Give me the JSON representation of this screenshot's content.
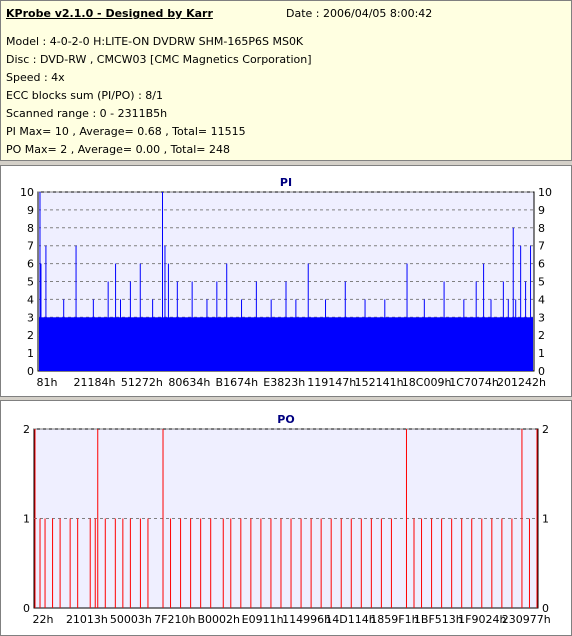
{
  "info": {
    "title": "KProbe v2.1.0 - Designed by Karr",
    "date": "Date : 2006/04/05 8:00:42",
    "lines": [
      "Model : 4-0-2-0 H:LITE-ON DVDRW SHM-165P6S MS0K",
      "Disc : DVD-RW , CMCW03 [CMC Magnetics Corporation]",
      "Speed : 4x",
      "ECC blocks sum (PI/PO) : 8/1",
      "Scanned range : 0 - 2311B5h",
      "PI Max= 10 , Average= 0.68 , Total= 11515",
      "PO Max= 2 , Average= 0.00 , Total= 248"
    ]
  },
  "colors": {
    "pi_bar": "#0000ff",
    "po_bar": "#ff0000",
    "plot_bg": "#efefff",
    "grid": "#808080"
  },
  "chart_data": [
    {
      "type": "bar",
      "title": "PI",
      "ylim": [
        0,
        10
      ],
      "yticks": [
        0,
        1,
        2,
        3,
        4,
        5,
        6,
        7,
        8,
        9,
        10
      ],
      "grid": true,
      "xticks": [
        "81h",
        "21184h",
        "51272h",
        "80634h",
        "B1674h",
        "E3823h",
        "119147h",
        "152141h",
        "18C009h",
        "1C7074h",
        "201242h"
      ],
      "baseline": 3,
      "series": [
        {
          "values": [
            [
              0.002,
              10
            ],
            [
              0.004,
              6
            ],
            [
              0.014,
              7
            ],
            [
              0.05,
              4
            ],
            [
              0.075,
              7
            ],
            [
              0.11,
              4
            ],
            [
              0.14,
              5
            ],
            [
              0.155,
              6
            ],
            [
              0.165,
              4
            ],
            [
              0.185,
              5
            ],
            [
              0.205,
              6
            ],
            [
              0.23,
              4
            ],
            [
              0.25,
              10
            ],
            [
              0.255,
              7
            ],
            [
              0.262,
              6
            ],
            [
              0.28,
              5
            ],
            [
              0.31,
              5
            ],
            [
              0.34,
              4
            ],
            [
              0.36,
              5
            ],
            [
              0.38,
              6
            ],
            [
              0.41,
              4
            ],
            [
              0.44,
              5
            ],
            [
              0.47,
              4
            ],
            [
              0.5,
              5
            ],
            [
              0.52,
              4
            ],
            [
              0.545,
              6
            ],
            [
              0.58,
              4
            ],
            [
              0.62,
              5
            ],
            [
              0.66,
              4
            ],
            [
              0.7,
              4
            ],
            [
              0.745,
              6
            ],
            [
              0.78,
              4
            ],
            [
              0.82,
              5
            ],
            [
              0.86,
              4
            ],
            [
              0.885,
              5
            ],
            [
              0.9,
              6
            ],
            [
              0.915,
              4
            ],
            [
              0.94,
              5
            ],
            [
              0.95,
              4
            ],
            [
              0.96,
              8
            ],
            [
              0.965,
              4
            ],
            [
              0.975,
              7
            ],
            [
              0.985,
              5
            ],
            [
              0.995,
              7
            ]
          ]
        }
      ]
    },
    {
      "type": "bar",
      "title": "PO",
      "ylim": [
        0,
        2
      ],
      "yticks": [
        0,
        1,
        2
      ],
      "grid": true,
      "xticks": [
        "22h",
        "21013h",
        "50003h",
        "7F210h",
        "B0002h",
        "E0911h",
        "114996h",
        "14D114h",
        "1859F1h",
        "1BF513h",
        "1F9024h",
        "230977h"
      ],
      "series": [
        {
          "values": [
            [
              0.0,
              2
            ],
            [
              0.01,
              1
            ],
            [
              0.02,
              1
            ],
            [
              0.035,
              1
            ],
            [
              0.05,
              1
            ],
            [
              0.07,
              1
            ],
            [
              0.085,
              1
            ],
            [
              0.11,
              1
            ],
            [
              0.12,
              1
            ],
            [
              0.125,
              2
            ],
            [
              0.14,
              1
            ],
            [
              0.16,
              1
            ],
            [
              0.175,
              1
            ],
            [
              0.19,
              1
            ],
            [
              0.21,
              1
            ],
            [
              0.225,
              1
            ],
            [
              0.255,
              2
            ],
            [
              0.27,
              1
            ],
            [
              0.29,
              1
            ],
            [
              0.31,
              1
            ],
            [
              0.33,
              1
            ],
            [
              0.35,
              1
            ],
            [
              0.375,
              1
            ],
            [
              0.39,
              1
            ],
            [
              0.41,
              1
            ],
            [
              0.43,
              1
            ],
            [
              0.45,
              1
            ],
            [
              0.47,
              1
            ],
            [
              0.49,
              1
            ],
            [
              0.51,
              1
            ],
            [
              0.53,
              1
            ],
            [
              0.55,
              1
            ],
            [
              0.57,
              1
            ],
            [
              0.59,
              1
            ],
            [
              0.61,
              1
            ],
            [
              0.63,
              1
            ],
            [
              0.65,
              1
            ],
            [
              0.67,
              1
            ],
            [
              0.69,
              1
            ],
            [
              0.71,
              1
            ],
            [
              0.74,
              2
            ],
            [
              0.755,
              1
            ],
            [
              0.77,
              1
            ],
            [
              0.79,
              1
            ],
            [
              0.81,
              1
            ],
            [
              0.83,
              1
            ],
            [
              0.85,
              1
            ],
            [
              0.87,
              1
            ],
            [
              0.89,
              1
            ],
            [
              0.91,
              1
            ],
            [
              0.93,
              1
            ],
            [
              0.95,
              1
            ],
            [
              0.97,
              2
            ],
            [
              0.985,
              1
            ],
            [
              1.0,
              2
            ]
          ]
        }
      ]
    }
  ]
}
